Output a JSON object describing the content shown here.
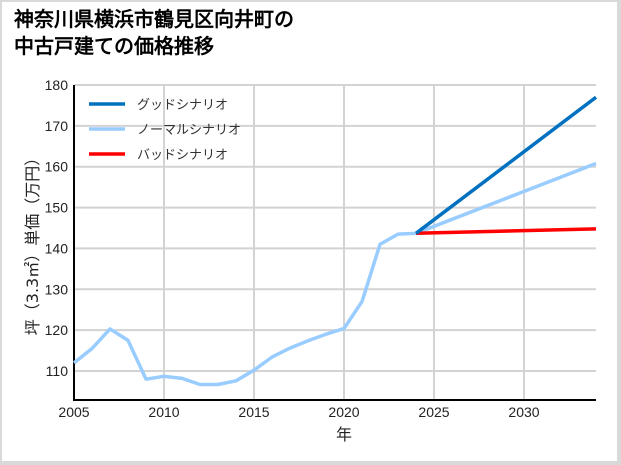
{
  "title_line1": "神奈川県横浜市鶴見区向井町の",
  "title_line2": "中古戸建ての価格推移",
  "chart_data": {
    "type": "line",
    "title": "神奈川県横浜市鶴見区向井町の中古戸建ての価格推移",
    "xlabel": "年",
    "ylabel": "坪（3.3㎡）単価（万円）",
    "xlim": [
      2005,
      2034
    ],
    "ylim": [
      103,
      180
    ],
    "xticks": [
      2005,
      2010,
      2015,
      2020,
      2025,
      2030
    ],
    "yticks": [
      110,
      120,
      130,
      140,
      150,
      160,
      170,
      180
    ],
    "grid": true,
    "legend_position": "upper left",
    "series": [
      {
        "name": "グッドシナリオ",
        "color": "#0070c0",
        "x": [
          2024,
          2034
        ],
        "values": [
          143.7,
          177
        ]
      },
      {
        "name": "ノーマルシナリオ",
        "color": "#99ccff",
        "x": [
          2005,
          2006,
          2007,
          2008,
          2009,
          2010,
          2011,
          2012,
          2013,
          2014,
          2015,
          2016,
          2017,
          2018,
          2019,
          2020,
          2021,
          2022,
          2023,
          2024,
          2034
        ],
        "values": [
          112,
          115.5,
          120.3,
          117.5,
          108,
          108.7,
          108.2,
          106.7,
          106.7,
          107.6,
          110.2,
          113.4,
          115.6,
          117.4,
          119,
          120.4,
          127,
          141,
          143.5,
          143.7,
          160.8
        ]
      },
      {
        "name": "バッドシナリオ",
        "color": "#ff0000",
        "x": [
          2024,
          2034
        ],
        "values": [
          143.7,
          144.8
        ]
      }
    ]
  }
}
